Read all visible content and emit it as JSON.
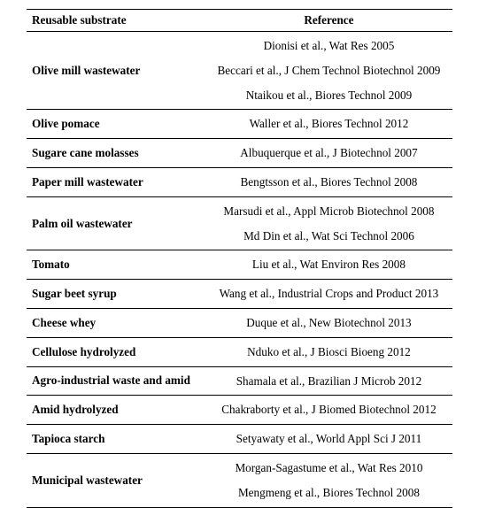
{
  "table": {
    "headers": {
      "substrate": "Reusable substrate",
      "reference": "Reference"
    },
    "rows": [
      {
        "substrate": "Olive mill wastewater",
        "refs": [
          "Dionisi et al., Wat Res 2005",
          "Beccari et al., J Chem Technol Biotechnol 2009",
          "Ntaikou et al., Biores Technol 2009"
        ]
      },
      {
        "substrate": "Olive pomace",
        "refs": [
          "Waller et al., Biores Technol 2012"
        ]
      },
      {
        "substrate": "Sugare cane molasses",
        "refs": [
          "Albuquerque et al., J Biotechnol 2007"
        ]
      },
      {
        "substrate": "Paper mill wastewater",
        "refs": [
          "Bengtsson et al., Biores Technol 2008"
        ]
      },
      {
        "substrate": "Palm oil wastewater",
        "refs": [
          "Marsudi et al., Appl Microb Biotechnol 2008",
          "Md Din et al., Wat Sci Technol 2006"
        ]
      },
      {
        "substrate": "Tomato",
        "refs": [
          "Liu et al., Wat Environ Res 2008"
        ]
      },
      {
        "substrate": "Sugar beet syrup",
        "refs": [
          "Wang et al., Industrial Crops and Product 2013"
        ]
      },
      {
        "substrate": "Cheese whey",
        "refs": [
          "Duque et al., New Biotechnol 2013"
        ]
      },
      {
        "substrate": "Cellulose hydrolyzed",
        "refs": [
          "Nduko et al., J Biosci Bioeng 2012"
        ]
      },
      {
        "substrate": "Agro-industrial waste and amid",
        "refs": [
          "Shamala et al., Brazilian J Microb 2012"
        ]
      },
      {
        "substrate": "Amid hydrolyzed",
        "refs": [
          "Chakraborty et al., J Biomed Biotechnol 2012"
        ]
      },
      {
        "substrate": "Tapioca starch",
        "refs": [
          "Setyawaty et al., World Appl Sci J 2011"
        ]
      },
      {
        "substrate": "Municipal wastewater",
        "refs": [
          "Morgan-Sagastume et al., Wat Res 2010",
          "Mengmeng et al., Biores Technol 2008"
        ]
      }
    ]
  }
}
